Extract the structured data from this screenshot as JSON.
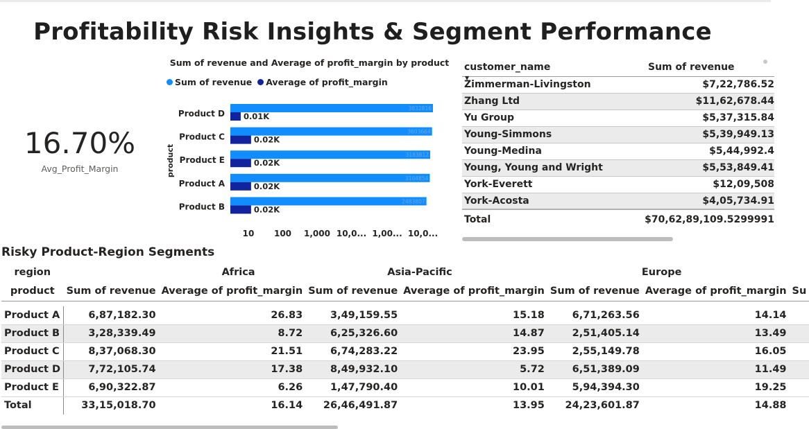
{
  "page": {
    "title": "Profitability Risk Insights & Segment Performance"
  },
  "kpi": {
    "value": "16.70%",
    "label": "Avg_Profit_Margin"
  },
  "colors": {
    "revenue": "#118DFF",
    "margin": "#12239E"
  },
  "chart_data": {
    "type": "bar",
    "orientation": "horizontal",
    "title": "Sum of revenue and Average of profit_margin by product",
    "ylabel": "product",
    "xscale": "log",
    "categories": [
      "Product D",
      "Product C",
      "Product E",
      "Product A",
      "Product B"
    ],
    "series": [
      {
        "name": "Sum of revenue",
        "values": [
          3832816,
          3603664,
          3183812,
          3104854,
          2483807
        ],
        "labels": [
          "3832816",
          "3603664",
          "3183812",
          "3104854",
          "2483807"
        ]
      },
      {
        "name": "Average of profit_margin",
        "values": [
          10,
          20,
          20,
          20,
          20
        ],
        "labels": [
          "0.01K",
          "0.02K",
          "0.02K",
          "0.02K",
          "0.02K"
        ]
      }
    ],
    "xticks": [
      "10",
      "100",
      "1,000",
      "10,0...",
      "1,00...",
      "10,0..."
    ],
    "legend": [
      "Sum of revenue",
      "Average of profit_margin"
    ],
    "legend_position": "top-left"
  },
  "customers": {
    "col1": "customer_name",
    "col2": "Sum of revenue",
    "rows": [
      {
        "name": "Zimmerman-Livingston",
        "revenue": "$7,22,786.52"
      },
      {
        "name": "Zhang Ltd",
        "revenue": "$11,62,678.44"
      },
      {
        "name": "Yu Group",
        "revenue": "$5,37,315.84"
      },
      {
        "name": "Young-Simmons",
        "revenue": "$5,39,949.13"
      },
      {
        "name": "Young-Medina",
        "revenue": "$5,44,992.4"
      },
      {
        "name": "Young, Young and Wright",
        "revenue": "$5,53,849.41"
      },
      {
        "name": "York-Everett",
        "revenue": "$12,09,508"
      },
      {
        "name": "York-Acosta",
        "revenue": "$4,05,734.91"
      }
    ],
    "total_label": "Total",
    "total_value": "$70,62,89,109.5299991"
  },
  "matrix": {
    "title": "Risky Product-Region Segments",
    "region_label": "region",
    "product_label": "product",
    "regions": [
      "Africa",
      "Asia-Pacific",
      "Europe"
    ],
    "measures": [
      "Sum of revenue",
      "Average of profit_margin",
      "Su"
    ],
    "rows": [
      {
        "product": "Product A",
        "values": [
          "6,87,182.30",
          "26.83",
          "3,49,159.55",
          "15.18",
          "6,71,263.56",
          "14.14"
        ]
      },
      {
        "product": "Product B",
        "values": [
          "3,28,339.49",
          "8.72",
          "6,25,326.60",
          "14.87",
          "2,51,405.14",
          "13.49"
        ]
      },
      {
        "product": "Product C",
        "values": [
          "8,37,068.30",
          "21.51",
          "6,74,283.22",
          "23.95",
          "2,55,149.78",
          "16.05"
        ]
      },
      {
        "product": "Product D",
        "values": [
          "7,72,105.74",
          "17.38",
          "8,49,932.10",
          "5.72",
          "6,51,389.09",
          "11.49"
        ]
      },
      {
        "product": "Product E",
        "values": [
          "6,90,322.87",
          "6.26",
          "1,47,790.40",
          "10.01",
          "5,94,394.30",
          "19.25"
        ]
      }
    ],
    "total": {
      "product": "Total",
      "values": [
        "33,15,018.70",
        "16.14",
        "26,46,491.87",
        "13.95",
        "24,23,601.87",
        "14.88"
      ]
    }
  }
}
